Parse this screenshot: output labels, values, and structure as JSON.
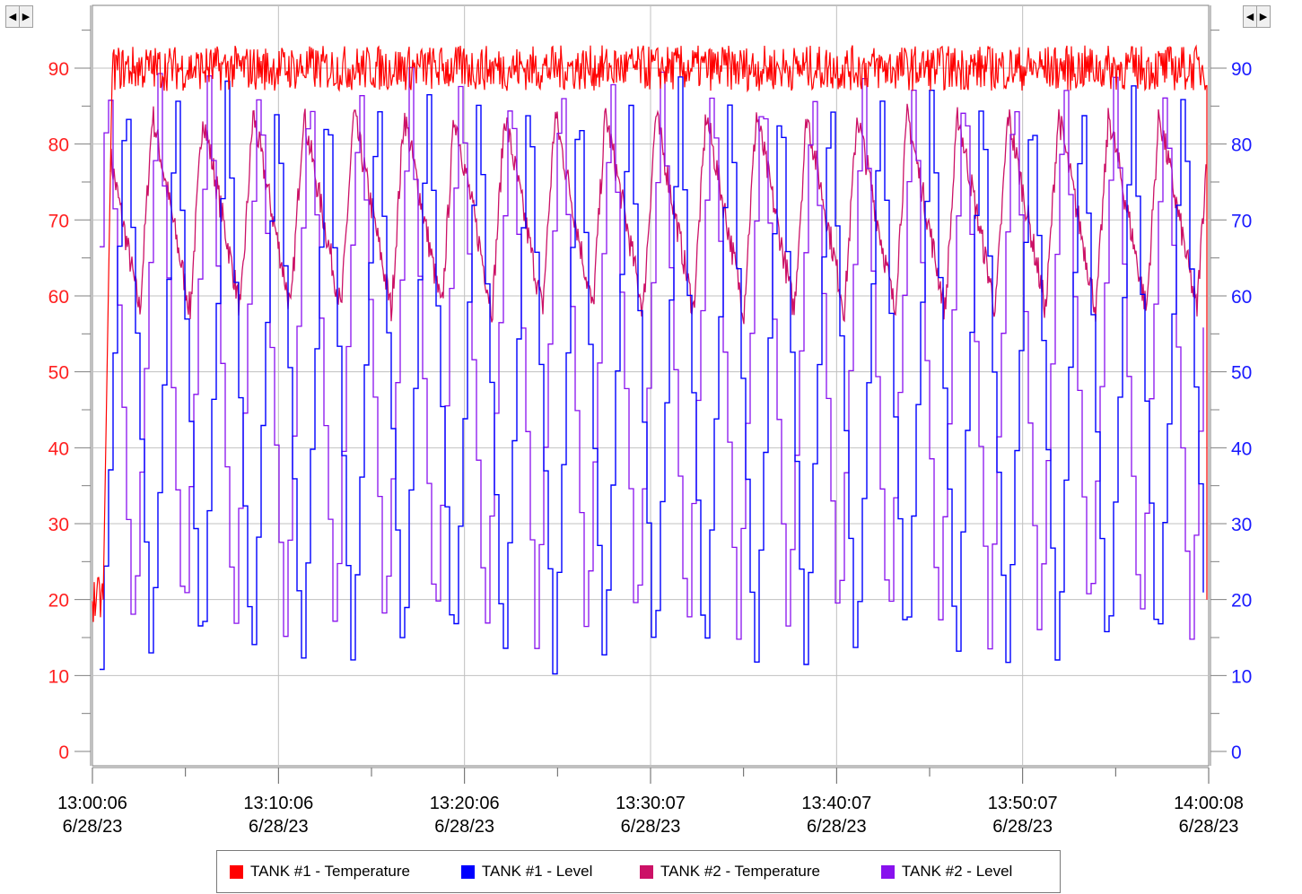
{
  "chart_data": {
    "type": "line",
    "title": "",
    "x_ticks": [
      {
        "time": "13:00:06",
        "date": "6/28/23"
      },
      {
        "time": "13:10:06",
        "date": "6/28/23"
      },
      {
        "time": "13:20:06",
        "date": "6/28/23"
      },
      {
        "time": "13:30:07",
        "date": "6/28/23"
      },
      {
        "time": "13:40:07",
        "date": "6/28/23"
      },
      {
        "time": "13:50:07",
        "date": "6/28/23"
      },
      {
        "time": "14:00:08",
        "date": "6/28/23"
      }
    ],
    "x_range": [
      "13:00:06",
      "14:00:08"
    ],
    "y_left": {
      "ticks": [
        "0",
        "10",
        "20",
        "30",
        "40",
        "50",
        "60",
        "70",
        "80",
        "90"
      ],
      "range": [
        0,
        100
      ],
      "color": "#ff2020"
    },
    "y_right": {
      "ticks": [
        "0",
        "10",
        "20",
        "30",
        "40",
        "50",
        "60",
        "70",
        "80",
        "90"
      ],
      "range": [
        0,
        100
      ],
      "color": "#1a1aff"
    },
    "grid": true,
    "series": [
      {
        "name": "TANK #1 - Temperature",
        "color": "#ff0000",
        "pattern": "steady ~88-92 after rising from ~20 in first minute"
      },
      {
        "name": "TANK #1 - Level",
        "color": "#0000ff",
        "pattern": "oscillates ~10-88, about 22 cycles per hour"
      },
      {
        "name": "TANK #2 - Temperature",
        "color": "#cc1166",
        "pattern": "oscillates ~58-85, about 22 cycles per hour"
      },
      {
        "name": "TANK #2 - Level",
        "color": "#8811ee",
        "pattern": "oscillates ~15-90, about 22 cycles per hour"
      }
    ],
    "legend_position": "bottom"
  }
}
